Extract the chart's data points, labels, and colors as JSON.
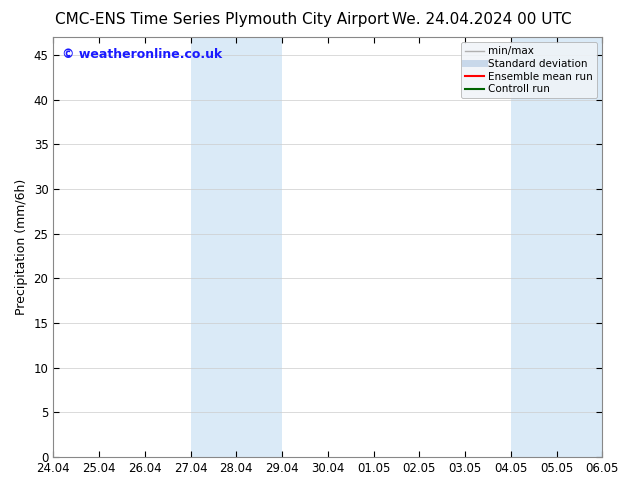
{
  "title_left": "CMC-ENS Time Series Plymouth City Airport",
  "title_right": "We. 24.04.2024 00 UTC",
  "ylabel": "Precipitation (mm/6h)",
  "background_color": "#ffffff",
  "plot_bg_color": "#ffffff",
  "ylim": [
    0,
    47
  ],
  "yticks": [
    0,
    5,
    10,
    15,
    20,
    25,
    30,
    35,
    40,
    45
  ],
  "xtick_labels": [
    "24.04",
    "25.04",
    "26.04",
    "27.04",
    "28.04",
    "29.04",
    "30.04",
    "01.05",
    "02.05",
    "03.05",
    "04.05",
    "05.05",
    "06.05"
  ],
  "xtick_positions": [
    0,
    1,
    2,
    3,
    4,
    5,
    6,
    7,
    8,
    9,
    10,
    11,
    12
  ],
  "shaded_bands": [
    {
      "x_start": 3,
      "x_end": 5,
      "color": "#daeaf7"
    },
    {
      "x_start": 10,
      "x_end": 12,
      "color": "#daeaf7"
    }
  ],
  "watermark_text": "© weatheronline.co.uk",
  "watermark_color": "#1a1aff",
  "legend_items": [
    {
      "label": "min/max",
      "color": "#b0b0b0",
      "lw": 1.0
    },
    {
      "label": "Standard deviation",
      "color": "#c8d8ea",
      "lw": 5
    },
    {
      "label": "Ensemble mean run",
      "color": "#ff0000",
      "lw": 1.5
    },
    {
      "label": "Controll run",
      "color": "#006400",
      "lw": 1.5
    }
  ],
  "title_fontsize": 11,
  "axis_label_fontsize": 9,
  "tick_fontsize": 8.5,
  "legend_fontsize": 7.5,
  "watermark_fontsize": 9
}
